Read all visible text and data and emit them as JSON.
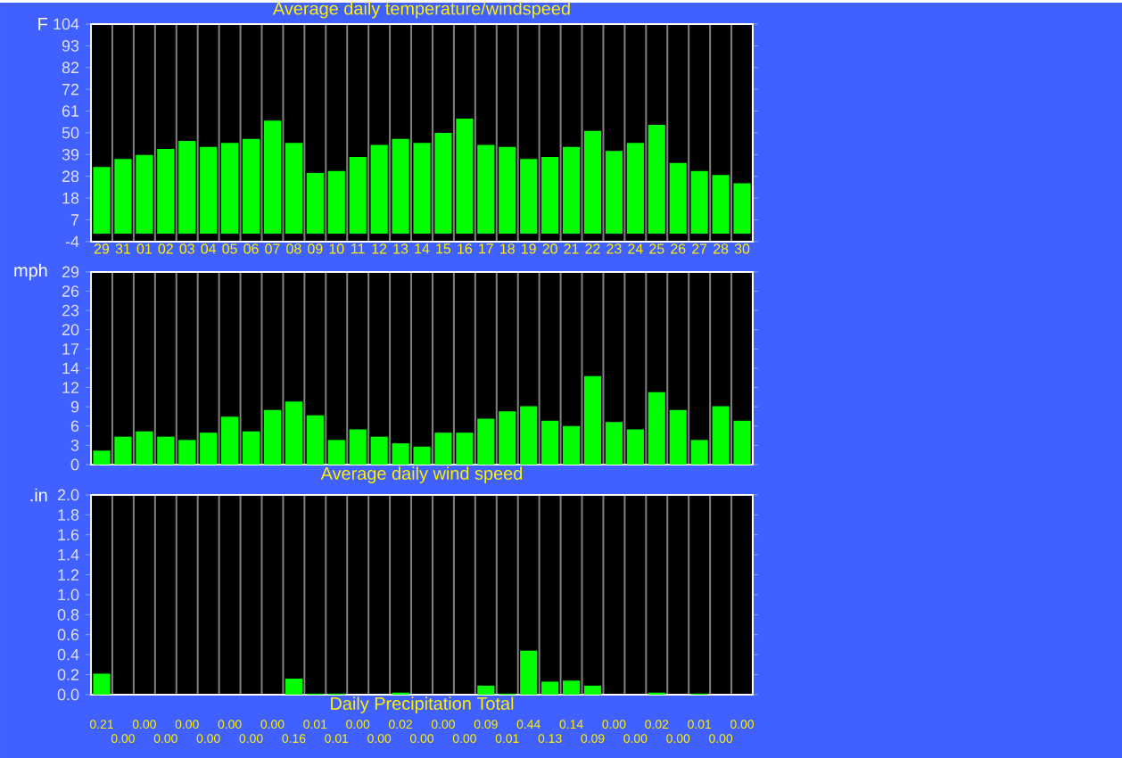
{
  "chart_data": [
    {
      "type": "bar",
      "title": "Average daily temperature/windspeed",
      "ylabel": "F",
      "color": "#00ff00",
      "grid": "x",
      "categories": [
        "29",
        "31",
        "01",
        "02",
        "03",
        "04",
        "05",
        "06",
        "07",
        "08",
        "09",
        "10",
        "11",
        "12",
        "13",
        "14",
        "15",
        "16",
        "17",
        "18",
        "19",
        "20",
        "21",
        "22",
        "23",
        "24",
        "25",
        "26",
        "27",
        "28",
        "30"
      ],
      "values": [
        33,
        37,
        39,
        42,
        46,
        43,
        45,
        47,
        56,
        45,
        30,
        31,
        38,
        44,
        47,
        45,
        50,
        57,
        44,
        43,
        37,
        38,
        43,
        51,
        41,
        45,
        54,
        35,
        31,
        29,
        25
      ],
      "ylim": [
        -4,
        104
      ],
      "yticks": [
        -4,
        {
          "value": 6.8,
          "label": "7"
        },
        {
          "value": 17.6,
          "label": "18"
        },
        {
          "value": 28.4,
          "label": "28"
        },
        {
          "value": 39.2,
          "label": "39"
        },
        50,
        {
          "value": 60.8,
          "label": "61"
        },
        {
          "value": 71.6,
          "label": "72"
        },
        {
          "value": 82.4,
          "label": "82"
        },
        {
          "value": 93.2,
          "label": "93"
        },
        104
      ]
    },
    {
      "type": "bar",
      "xlabel": "Average daily wind speed",
      "ylabel": "mph",
      "color": "#00ff00",
      "grid": "x",
      "tick_labels": "y",
      "categories": [
        "29",
        "31",
        "01",
        "02",
        "03",
        "04",
        "05",
        "06",
        "07",
        "08",
        "09",
        "10",
        "11",
        "12",
        "13",
        "14",
        "15",
        "16",
        "17",
        "18",
        "19",
        "20",
        "21",
        "22",
        "23",
        "24",
        "25",
        "26",
        "27",
        "28",
        "30"
      ],
      "values": [
        2.1,
        4.2,
        5.0,
        4.2,
        3.7,
        4.8,
        7.2,
        5.0,
        8.2,
        9.5,
        7.4,
        3.7,
        5.3,
        4.2,
        3.2,
        2.7,
        4.8,
        4.8,
        6.9,
        8.0,
        8.8,
        6.6,
        5.8,
        13.3,
        6.4,
        5.3,
        10.9,
        8.2,
        3.7,
        8.8,
        6.6
      ],
      "ylim": [
        0,
        29
      ],
      "yticks": [
        0,
        {
          "value": 2.9,
          "label": "3"
        },
        {
          "value": 5.8,
          "label": "6"
        },
        {
          "value": 8.7,
          "label": "9"
        },
        {
          "value": 11.6,
          "label": "12"
        },
        {
          "value": 14.5,
          "label": "14"
        },
        {
          "value": 17.4,
          "label": "17"
        },
        {
          "value": 20.3,
          "label": "20"
        },
        {
          "value": 23.2,
          "label": "23"
        },
        {
          "value": 26.1,
          "label": "26"
        },
        29
      ]
    },
    {
      "type": "bar",
      "xlabel": "Daily Precipitation Total",
      "ylabel": ".in",
      "color": "#00ff00",
      "grid": "x",
      "tick_labels": "y",
      "categories": [
        "29",
        "31",
        "01",
        "02",
        "03",
        "04",
        "05",
        "06",
        "07",
        "08",
        "09",
        "10",
        "11",
        "12",
        "13",
        "14",
        "15",
        "16",
        "17",
        "18",
        "19",
        "20",
        "21",
        "22",
        "23",
        "24",
        "25",
        "26",
        "27",
        "28",
        "30"
      ],
      "values": [
        0.21,
        0,
        0,
        0,
        0,
        0,
        0,
        0,
        0,
        0.16,
        0.01,
        0.01,
        0,
        0,
        0.02,
        0,
        0,
        0,
        0.09,
        0.01,
        0.44,
        0.13,
        0.14,
        0.09,
        0,
        0,
        0.02,
        0,
        0.01,
        0,
        0
      ],
      "value_labels": [
        "0.21",
        "0.00",
        "0.00",
        "0.00",
        "0.00",
        "0.00",
        "0.00",
        "0.00",
        "0.00",
        "0.16",
        "0.01",
        "0.01",
        "0.00",
        "0.00",
        "0.02",
        "0.00",
        "0.00",
        "0.00",
        "0.09",
        "0.01",
        "0.44",
        "0.13",
        "0.14",
        "0.09",
        "0.00",
        "0.00",
        "0.02",
        "0.00",
        "0.01",
        "0.00",
        "0.00"
      ],
      "ylim": [
        0,
        2.0
      ],
      "yticks": [
        {
          "value": 0,
          "label": "0.0"
        },
        {
          "value": 0.2,
          "label": "0.2"
        },
        {
          "value": 0.4,
          "label": "0.4"
        },
        {
          "value": 0.6,
          "label": "0.6"
        },
        {
          "value": 0.8,
          "label": "0.8"
        },
        {
          "value": 1.0,
          "label": "1.0"
        },
        {
          "value": 1.2,
          "label": "1.2"
        },
        {
          "value": 1.4,
          "label": "1.4"
        },
        {
          "value": 1.6,
          "label": "1.6"
        },
        {
          "value": 1.8,
          "label": "1.8"
        },
        {
          "value": 2.0,
          "label": "2.0"
        }
      ]
    }
  ]
}
